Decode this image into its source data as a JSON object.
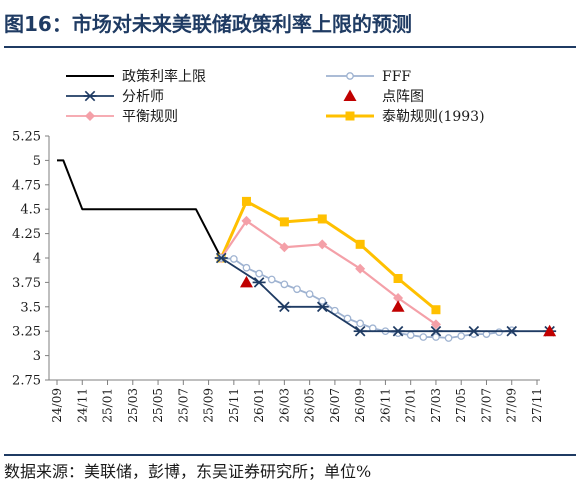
{
  "header": {
    "title": "图16：市场对未来美联储政策利率上限的预测"
  },
  "footer": {
    "source": "数据来源：美联储，彭博，东吴证券研究所；单位%"
  },
  "chart_data": {
    "type": "line",
    "title": "图16：市场对未来美联储政策利率上限的预测",
    "xlabel": "",
    "ylabel": "",
    "x_ticks": [
      "24/09",
      "24/11",
      "25/01",
      "25/03",
      "25/05",
      "25/07",
      "25/09",
      "25/11",
      "26/01",
      "26/03",
      "26/05",
      "26/07",
      "26/09",
      "26/11",
      "27/01",
      "27/03",
      "27/05",
      "27/07",
      "27/09",
      "27/11"
    ],
    "ylim": [
      2.75,
      5.25
    ],
    "y_ticks": [
      "2.75",
      "3",
      "3.25",
      "3.5",
      "3.75",
      "4",
      "4.25",
      "4.5",
      "4.75",
      "5",
      "5.25"
    ],
    "grid": "none",
    "legend_position": "top",
    "colors": {
      "policy": "#000000",
      "fff": "#9fb3d1",
      "analyst": "#1f3b63",
      "dotplot": "#c00000",
      "balanced": "#f4a0a8",
      "taylor": "#ffc000"
    },
    "series": [
      {
        "name": "政策利率上限",
        "key": "policy",
        "marker": "none",
        "points": [
          [
            "24/09",
            5.0
          ],
          [
            "24/09.5",
            5.0
          ],
          [
            "24/11",
            4.5
          ],
          [
            "25/01",
            4.5
          ],
          [
            "25/03",
            4.5
          ],
          [
            "25/05",
            4.5
          ],
          [
            "25/07",
            4.5
          ],
          [
            "25/08",
            4.5
          ],
          [
            "25/09",
            4.25
          ],
          [
            "25/10",
            4.0
          ]
        ]
      },
      {
        "name": "FFF",
        "key": "fff",
        "marker": "circle",
        "points": [
          [
            "25/10",
            4.0
          ],
          [
            "25/11",
            3.99
          ],
          [
            "25/12",
            3.9
          ],
          [
            "26/01",
            3.84
          ],
          [
            "26/02",
            3.78
          ],
          [
            "26/03",
            3.73
          ],
          [
            "26/04",
            3.68
          ],
          [
            "26/05",
            3.63
          ],
          [
            "26/06",
            3.56
          ],
          [
            "26/07",
            3.46
          ],
          [
            "26/08",
            3.38
          ],
          [
            "26/09",
            3.33
          ],
          [
            "26/10",
            3.28
          ],
          [
            "26/11",
            3.25
          ],
          [
            "26/12",
            3.23
          ],
          [
            "27/01",
            3.21
          ],
          [
            "27/02",
            3.19
          ],
          [
            "27/03",
            3.19
          ],
          [
            "27/04",
            3.18
          ],
          [
            "27/05",
            3.2
          ],
          [
            "27/06",
            3.22
          ],
          [
            "27/07",
            3.22
          ],
          [
            "27/08",
            3.24
          ],
          [
            "27/09",
            3.26
          ]
        ]
      },
      {
        "name": "分析师",
        "key": "analyst",
        "marker": "asterisk",
        "points": [
          [
            "25/10",
            4.0
          ],
          [
            "26/01",
            3.75
          ],
          [
            "26/03",
            3.5
          ],
          [
            "26/06",
            3.5
          ],
          [
            "26/09",
            3.25
          ],
          [
            "26/12",
            3.25
          ],
          [
            "27/03",
            3.25
          ],
          [
            "27/06",
            3.25
          ],
          [
            "27/09",
            3.25
          ],
          [
            "27/12",
            3.25
          ]
        ]
      },
      {
        "name": "点阵图",
        "key": "dotplot",
        "marker": "triangle",
        "points": [
          [
            "25/12",
            3.75
          ],
          [
            "26/12",
            3.5
          ],
          [
            "27/12",
            3.25
          ]
        ]
      },
      {
        "name": "平衡规则",
        "key": "balanced",
        "marker": "diamond",
        "points": [
          [
            "25/10",
            4.0
          ],
          [
            "25/12",
            4.38
          ],
          [
            "26/03",
            4.11
          ],
          [
            "26/06",
            4.14
          ],
          [
            "26/09",
            3.89
          ],
          [
            "26/12",
            3.59
          ],
          [
            "27/03",
            3.32
          ]
        ]
      },
      {
        "name": "泰勒规则(1993)",
        "key": "taylor",
        "marker": "square",
        "points": [
          [
            "25/10",
            4.0
          ],
          [
            "25/12",
            4.58
          ],
          [
            "26/03",
            4.37
          ],
          [
            "26/06",
            4.4
          ],
          [
            "26/09",
            4.14
          ],
          [
            "26/12",
            3.79
          ],
          [
            "27/03",
            3.47
          ]
        ]
      }
    ]
  }
}
